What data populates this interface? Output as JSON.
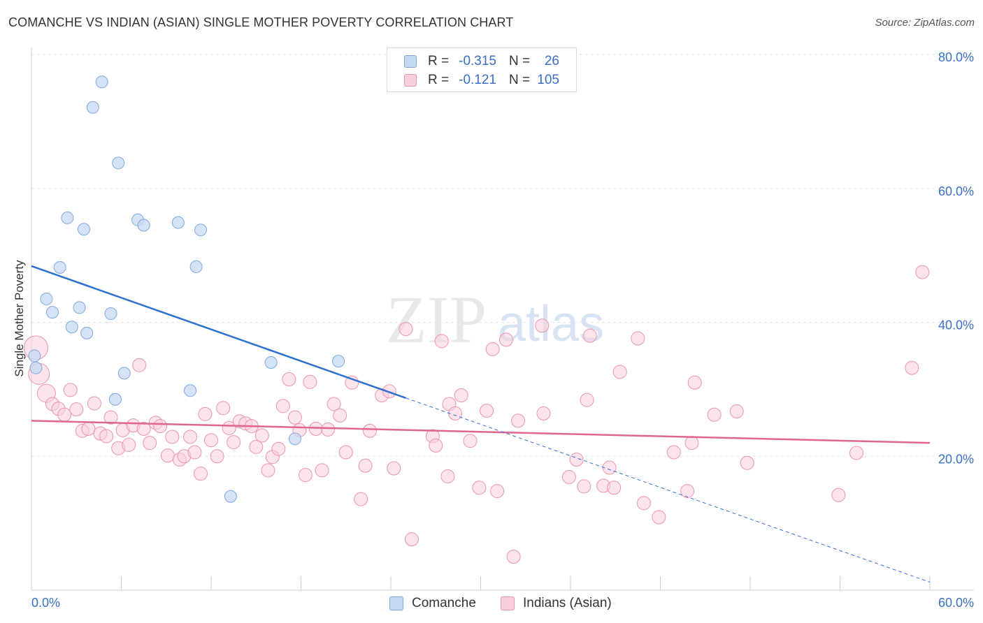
{
  "title": "COMANCHE VS INDIAN (ASIAN) SINGLE MOTHER POVERTY CORRELATION CHART",
  "source": "Source: ZipAtlas.com",
  "watermark": {
    "part1": "ZIP",
    "part2": "atlas"
  },
  "legend_top": {
    "rows": [
      {
        "r_label": "R =",
        "r_value": "-0.315",
        "n_label": "N =",
        "n_value": "26"
      },
      {
        "r_label": "R =",
        "r_value": "-0.121",
        "n_label": "N =",
        "n_value": "105"
      }
    ]
  },
  "legend_bottom": {
    "items": [
      "Comanche",
      "Indians (Asian)"
    ]
  },
  "chart_data": {
    "type": "scatter",
    "title": "COMANCHE VS INDIAN (ASIAN) SINGLE MOTHER POVERTY CORRELATION CHART",
    "xlabel": "",
    "ylabel": "Single Mother Poverty",
    "xlim": [
      0,
      60
    ],
    "ylim": [
      0,
      80
    ],
    "x_tick_labels": [
      "0.0%",
      "60.0%"
    ],
    "y_ticks": [
      20,
      40,
      60,
      80
    ],
    "y_tick_labels": [
      "20.0%",
      "40.0%",
      "60.0%",
      "80.0%"
    ],
    "grid": true,
    "legend_position": "top-center",
    "colors": {
      "comanche_fill": "#c5d9f2",
      "comanche_stroke": "#7ea6dc",
      "comanche_line": "#2f6fd0",
      "indian_fill": "#f8cfdb",
      "indian_stroke": "#ea93ae",
      "indian_line": "#e06690"
    },
    "series": [
      {
        "name": "Comanche",
        "r": -0.315,
        "n": 26,
        "trend": {
          "x0": 0,
          "y0": 48.4,
          "x1": 25,
          "y1": 28.7,
          "dash_to_x": 60,
          "dash_to_y": 1.2
        },
        "points": [
          [
            4.7,
            75.9
          ],
          [
            4.1,
            72.1
          ],
          [
            5.8,
            63.8
          ],
          [
            2.4,
            55.6
          ],
          [
            3.5,
            53.9
          ],
          [
            7.1,
            55.3
          ],
          [
            7.5,
            54.5
          ],
          [
            9.8,
            54.9
          ],
          [
            11.3,
            53.8
          ],
          [
            11.0,
            48.3
          ],
          [
            1.9,
            48.2
          ],
          [
            1.0,
            43.5
          ],
          [
            1.4,
            41.5
          ],
          [
            3.2,
            42.2
          ],
          [
            5.3,
            41.3
          ],
          [
            2.7,
            39.3
          ],
          [
            3.7,
            38.4
          ],
          [
            0.2,
            35.0
          ],
          [
            0.3,
            33.2
          ],
          [
            6.2,
            32.4
          ],
          [
            5.6,
            28.5
          ],
          [
            10.6,
            29.8
          ],
          [
            16.0,
            34.0
          ],
          [
            20.5,
            34.2
          ],
          [
            17.6,
            22.6
          ],
          [
            13.3,
            14.0
          ]
        ]
      },
      {
        "name": "Indians (Asian)",
        "r": -0.121,
        "n": 105,
        "trend": {
          "x0": 0,
          "y0": 25.3,
          "x1": 60,
          "y1": 22.0
        },
        "points": [
          [
            0.3,
            36.2
          ],
          [
            0.5,
            32.3
          ],
          [
            1.0,
            29.4
          ],
          [
            1.4,
            27.8
          ],
          [
            1.8,
            27.1
          ],
          [
            2.2,
            26.2
          ],
          [
            2.6,
            29.9
          ],
          [
            3.0,
            27.0
          ],
          [
            3.4,
            23.8
          ],
          [
            3.8,
            24.1
          ],
          [
            4.2,
            27.9
          ],
          [
            4.6,
            23.4
          ],
          [
            5.0,
            23.0
          ],
          [
            5.3,
            25.8
          ],
          [
            5.8,
            21.2
          ],
          [
            6.1,
            23.9
          ],
          [
            6.5,
            21.7
          ],
          [
            6.8,
            24.6
          ],
          [
            7.2,
            33.6
          ],
          [
            7.5,
            24.1
          ],
          [
            7.9,
            22.0
          ],
          [
            8.3,
            25.0
          ],
          [
            8.6,
            24.5
          ],
          [
            9.1,
            20.1
          ],
          [
            9.4,
            22.9
          ],
          [
            9.9,
            19.5
          ],
          [
            10.2,
            20.0
          ],
          [
            10.6,
            22.9
          ],
          [
            10.9,
            20.6
          ],
          [
            11.3,
            17.4
          ],
          [
            11.6,
            26.3
          ],
          [
            12.0,
            22.4
          ],
          [
            12.4,
            20.0
          ],
          [
            12.8,
            27.2
          ],
          [
            13.2,
            24.2
          ],
          [
            13.5,
            22.1
          ],
          [
            13.9,
            25.2
          ],
          [
            14.3,
            24.9
          ],
          [
            14.7,
            24.5
          ],
          [
            15.0,
            21.4
          ],
          [
            15.4,
            23.1
          ],
          [
            15.8,
            17.9
          ],
          [
            16.1,
            19.9
          ],
          [
            16.5,
            21.1
          ],
          [
            16.8,
            27.5
          ],
          [
            17.2,
            31.5
          ],
          [
            17.6,
            25.8
          ],
          [
            17.9,
            23.9
          ],
          [
            18.3,
            17.2
          ],
          [
            18.6,
            31.1
          ],
          [
            19.0,
            24.1
          ],
          [
            19.4,
            17.9
          ],
          [
            19.8,
            24.0
          ],
          [
            20.2,
            27.8
          ],
          [
            20.6,
            26.1
          ],
          [
            21.0,
            20.6
          ],
          [
            21.4,
            31.0
          ],
          [
            22.0,
            13.6
          ],
          [
            22.3,
            18.6
          ],
          [
            22.6,
            23.8
          ],
          [
            23.4,
            29.1
          ],
          [
            23.9,
            29.7
          ],
          [
            24.2,
            18.2
          ],
          [
            25.0,
            39.0
          ],
          [
            25.4,
            7.6
          ],
          [
            26.8,
            23.0
          ],
          [
            27.0,
            21.6
          ],
          [
            27.4,
            37.2
          ],
          [
            27.8,
            17.0
          ],
          [
            27.9,
            27.8
          ],
          [
            28.3,
            26.4
          ],
          [
            28.7,
            29.1
          ],
          [
            29.3,
            22.3
          ],
          [
            29.9,
            15.3
          ],
          [
            30.4,
            26.8
          ],
          [
            30.8,
            36.0
          ],
          [
            31.1,
            14.8
          ],
          [
            31.7,
            37.4
          ],
          [
            32.2,
            5.0
          ],
          [
            32.5,
            25.3
          ],
          [
            34.1,
            39.5
          ],
          [
            34.2,
            26.4
          ],
          [
            35.9,
            16.9
          ],
          [
            36.4,
            19.5
          ],
          [
            36.9,
            15.5
          ],
          [
            37.1,
            28.4
          ],
          [
            37.3,
            38.0
          ],
          [
            38.2,
            15.6
          ],
          [
            38.6,
            18.3
          ],
          [
            38.9,
            15.3
          ],
          [
            39.3,
            32.6
          ],
          [
            40.5,
            37.6
          ],
          [
            40.9,
            13.0
          ],
          [
            41.9,
            10.9
          ],
          [
            42.9,
            20.6
          ],
          [
            43.8,
            14.8
          ],
          [
            44.1,
            22.0
          ],
          [
            44.3,
            31.0
          ],
          [
            45.6,
            26.2
          ],
          [
            47.1,
            26.7
          ],
          [
            47.8,
            19.0
          ],
          [
            53.9,
            14.2
          ],
          [
            55.1,
            20.5
          ],
          [
            58.8,
            33.2
          ],
          [
            59.5,
            47.5
          ]
        ]
      }
    ]
  }
}
